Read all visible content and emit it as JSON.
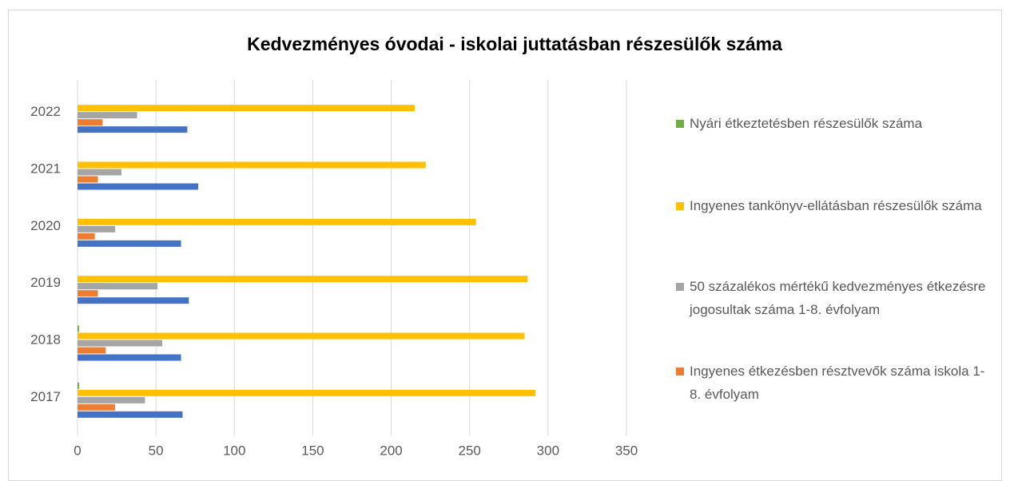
{
  "chart_data": {
    "type": "bar",
    "orientation": "horizontal",
    "title": "Kedvezményes óvodai - iskolai juttatásban részesülők száma",
    "categories": [
      "2017",
      "2018",
      "2019",
      "2020",
      "2021",
      "2022"
    ],
    "series": [
      {
        "color": "#4472c4",
        "values": [
          67,
          66,
          71,
          66,
          77,
          70
        ]
      },
      {
        "name": "Ingyenes étkezésben résztvevők száma iskola 1-8. évfolyam",
        "color": "#ed7d31",
        "values": [
          24,
          18,
          13,
          11,
          13,
          16
        ]
      },
      {
        "name": "50 százalékos mértékű kedvezményes étkezésre jogosultak száma 1-8. évfolyam",
        "color": "#a5a5a5",
        "values": [
          43,
          54,
          51,
          24,
          28,
          38
        ]
      },
      {
        "name": " Ingyenes tankönyv-ellátásban részesülők száma",
        "color": "#ffc000",
        "values": [
          292,
          285,
          287,
          254,
          222,
          215
        ]
      },
      {
        "name": "Nyári étkeztetésben részesülők száma",
        "color": "#70ad47",
        "values": [
          1,
          1,
          0,
          0,
          0,
          0
        ]
      }
    ],
    "xlim": [
      0,
      350
    ],
    "xticks": [
      0,
      50,
      100,
      150,
      200,
      250,
      300,
      350
    ],
    "grid": true
  }
}
